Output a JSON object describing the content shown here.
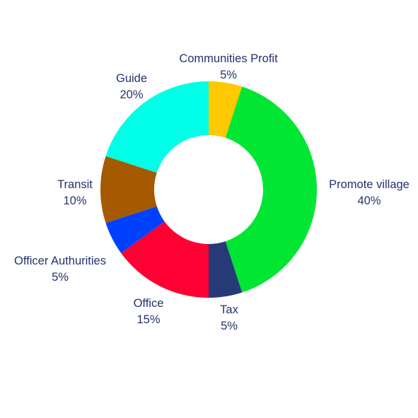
{
  "chart_data": {
    "type": "pie",
    "donut": true,
    "title": "",
    "unit": "%",
    "slices": [
      {
        "label": "Communities Profit",
        "value": 5,
        "percent_label": "5%",
        "color": "#ffc800"
      },
      {
        "label": "Promote village",
        "value": 40,
        "percent_label": "40%",
        "color": "#00e632"
      },
      {
        "label": "Tax",
        "value": 5,
        "percent_label": "5%",
        "color": "#263a78"
      },
      {
        "label": "Office",
        "value": 15,
        "percent_label": "15%",
        "color": "#ff0032"
      },
      {
        "label": "Officer Authurities",
        "value": 5,
        "percent_label": "5%",
        "color": "#0041ff"
      },
      {
        "label": "Transit",
        "value": 10,
        "percent_label": "10%",
        "color": "#a55a00"
      },
      {
        "label": "Guide",
        "value": 20,
        "percent_label": "20%",
        "color": "#00ffe6"
      }
    ],
    "start_angle": "12 o'clock",
    "direction": "clockwise",
    "legend": "none"
  }
}
